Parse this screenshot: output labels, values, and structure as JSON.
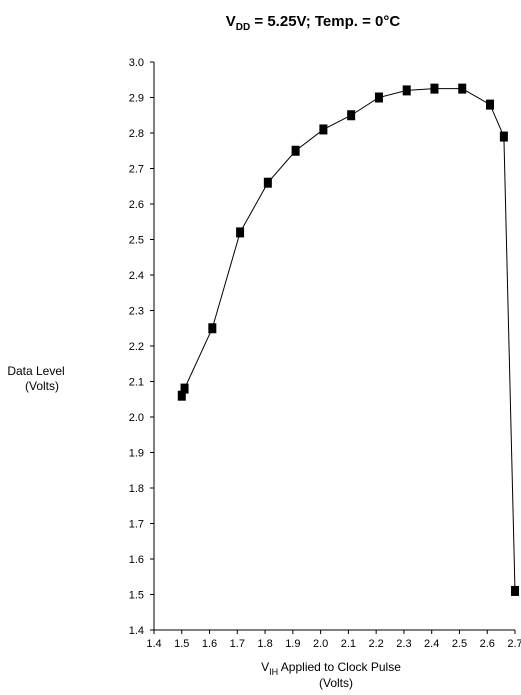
{
  "chart_data": {
    "type": "line",
    "title": {
      "prefix": "V",
      "sub": "DD",
      "rest": " = 5.25V; Temp. = 0°C"
    },
    "xlabel": {
      "prefix": "V",
      "sub": "IH",
      "rest": " Applied to Clock Pulse",
      "line2": "(Volts)"
    },
    "ylabel": {
      "line1": "Data Level",
      "line2": "(Volts)"
    },
    "xlim": [
      1.4,
      2.7
    ],
    "ylim": [
      1.4,
      3.0
    ],
    "x_ticks": [
      "1.4",
      "1.5",
      "1.6",
      "1.7",
      "1.8",
      "1.9",
      "2.0",
      "2.1",
      "2.2",
      "2.3",
      "2.4",
      "2.5",
      "2.6",
      "2.7"
    ],
    "y_ticks": [
      "1.4",
      "1.5",
      "1.6",
      "1.7",
      "1.8",
      "1.9",
      "2.0",
      "2.1",
      "2.2",
      "2.3",
      "2.4",
      "2.5",
      "2.6",
      "2.7",
      "2.8",
      "2.9",
      "3.0"
    ],
    "grid": false,
    "marker": "square",
    "series": [
      {
        "x": [
          1.5,
          1.51,
          1.61,
          1.71,
          1.81,
          1.91,
          2.01,
          2.11,
          2.21,
          2.31,
          2.41,
          2.51,
          2.61,
          2.66,
          2.7
        ],
        "y": [
          2.06,
          2.08,
          2.25,
          2.52,
          2.66,
          2.75,
          2.81,
          2.85,
          2.9,
          2.92,
          2.925,
          2.925,
          2.88,
          2.79,
          1.51
        ]
      }
    ],
    "colors": {
      "line": "#000000",
      "marker": "#000000",
      "axis": "#000000",
      "background": "#ffffff"
    }
  }
}
